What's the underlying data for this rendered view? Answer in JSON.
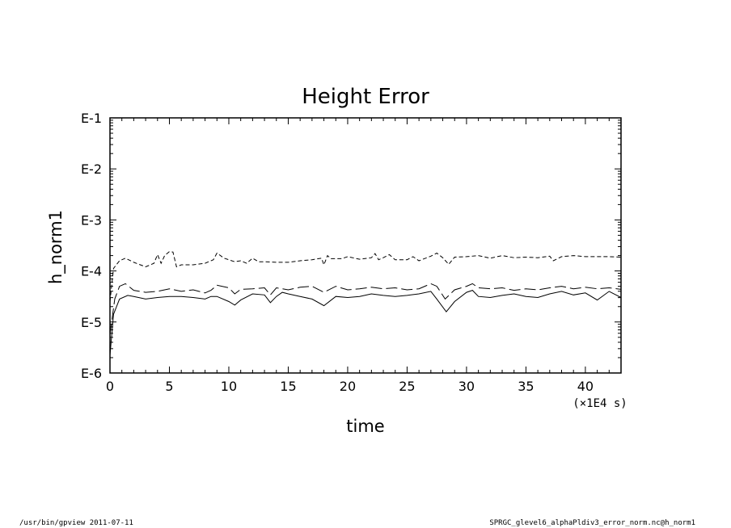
{
  "chart_data": {
    "type": "line",
    "title": "Height Error",
    "xlabel": "time",
    "ylabel": "h_norm1",
    "x_unit_label": "(×1E4 s)",
    "xlim": [
      0,
      43
    ],
    "ylim": [
      -6,
      -1
    ],
    "y_scale": "log10",
    "xticks": [
      0,
      5,
      10,
      15,
      20,
      25,
      30,
      35,
      40
    ],
    "yticks": [
      -1,
      -2,
      -3,
      -4,
      -5,
      -6
    ],
    "ytick_labels": [
      "E-1",
      "E-2",
      "E-3",
      "E-4",
      "E-5",
      "E-6"
    ],
    "grid": false,
    "legend": "none",
    "series": [
      {
        "line_style": "dashed-short",
        "points": [
          [
            0,
            -4.6
          ],
          [
            0.3,
            -3.95
          ],
          [
            0.8,
            -3.8
          ],
          [
            1.3,
            -3.75
          ],
          [
            2,
            -3.83
          ],
          [
            3,
            -3.92
          ],
          [
            3.7,
            -3.85
          ],
          [
            4,
            -3.68
          ],
          [
            4.3,
            -3.85
          ],
          [
            4.6,
            -3.7
          ],
          [
            5,
            -3.62
          ],
          [
            5.3,
            -3.63
          ],
          [
            5.6,
            -3.92
          ],
          [
            6,
            -3.88
          ],
          [
            7,
            -3.88
          ],
          [
            8,
            -3.85
          ],
          [
            8.7,
            -3.78
          ],
          [
            9,
            -3.65
          ],
          [
            9.6,
            -3.75
          ],
          [
            10.5,
            -3.82
          ],
          [
            11,
            -3.8
          ],
          [
            11.5,
            -3.85
          ],
          [
            12,
            -3.75
          ],
          [
            12.5,
            -3.82
          ],
          [
            13,
            -3.82
          ],
          [
            14,
            -3.83
          ],
          [
            15,
            -3.83
          ],
          [
            16,
            -3.8
          ],
          [
            17,
            -3.78
          ],
          [
            17.8,
            -3.75
          ],
          [
            18,
            -3.88
          ],
          [
            18.3,
            -3.7
          ],
          [
            18.6,
            -3.76
          ],
          [
            19.5,
            -3.76
          ],
          [
            20,
            -3.72
          ],
          [
            21,
            -3.77
          ],
          [
            22,
            -3.74
          ],
          [
            22.3,
            -3.66
          ],
          [
            22.6,
            -3.78
          ],
          [
            23,
            -3.74
          ],
          [
            23.5,
            -3.68
          ],
          [
            24,
            -3.78
          ],
          [
            25,
            -3.78
          ],
          [
            25.5,
            -3.72
          ],
          [
            26,
            -3.8
          ],
          [
            27,
            -3.71
          ],
          [
            27.5,
            -3.65
          ],
          [
            28,
            -3.74
          ],
          [
            28.5,
            -3.87
          ],
          [
            29,
            -3.73
          ],
          [
            30,
            -3.72
          ],
          [
            31,
            -3.7
          ],
          [
            32,
            -3.75
          ],
          [
            33,
            -3.7
          ],
          [
            34,
            -3.74
          ],
          [
            35,
            -3.73
          ],
          [
            36,
            -3.74
          ],
          [
            37,
            -3.71
          ],
          [
            37.3,
            -3.8
          ],
          [
            38,
            -3.72
          ],
          [
            39,
            -3.7
          ],
          [
            40,
            -3.72
          ],
          [
            41,
            -3.72
          ],
          [
            42,
            -3.72
          ],
          [
            43,
            -3.73
          ]
        ]
      },
      {
        "line_style": "dashed-long",
        "points": [
          [
            0,
            -5.25
          ],
          [
            0.4,
            -4.55
          ],
          [
            0.8,
            -4.3
          ],
          [
            1.3,
            -4.25
          ],
          [
            2,
            -4.38
          ],
          [
            3,
            -4.42
          ],
          [
            4,
            -4.4
          ],
          [
            5,
            -4.35
          ],
          [
            6,
            -4.4
          ],
          [
            7,
            -4.37
          ],
          [
            8,
            -4.43
          ],
          [
            8.5,
            -4.38
          ],
          [
            9,
            -4.28
          ],
          [
            10,
            -4.33
          ],
          [
            10.5,
            -4.45
          ],
          [
            11,
            -4.36
          ],
          [
            12,
            -4.35
          ],
          [
            13,
            -4.33
          ],
          [
            13.5,
            -4.47
          ],
          [
            14,
            -4.33
          ],
          [
            15,
            -4.37
          ],
          [
            16,
            -4.32
          ],
          [
            17,
            -4.3
          ],
          [
            18,
            -4.42
          ],
          [
            19,
            -4.3
          ],
          [
            20,
            -4.37
          ],
          [
            21,
            -4.35
          ],
          [
            22,
            -4.32
          ],
          [
            23,
            -4.35
          ],
          [
            24,
            -4.33
          ],
          [
            25,
            -4.37
          ],
          [
            26,
            -4.35
          ],
          [
            27,
            -4.25
          ],
          [
            27.5,
            -4.3
          ],
          [
            28.2,
            -4.55
          ],
          [
            29,
            -4.37
          ],
          [
            30,
            -4.3
          ],
          [
            30.5,
            -4.25
          ],
          [
            31,
            -4.33
          ],
          [
            32,
            -4.35
          ],
          [
            33,
            -4.33
          ],
          [
            34,
            -4.38
          ],
          [
            35,
            -4.35
          ],
          [
            36,
            -4.37
          ],
          [
            37,
            -4.33
          ],
          [
            38,
            -4.3
          ],
          [
            39,
            -4.35
          ],
          [
            40,
            -4.32
          ],
          [
            41,
            -4.35
          ],
          [
            42,
            -4.33
          ],
          [
            43,
            -4.36
          ]
        ]
      },
      {
        "line_style": "solid",
        "points": [
          [
            0,
            -5.65
          ],
          [
            0.3,
            -4.85
          ],
          [
            0.8,
            -4.55
          ],
          [
            1.5,
            -4.48
          ],
          [
            2,
            -4.5
          ],
          [
            3,
            -4.55
          ],
          [
            4,
            -4.52
          ],
          [
            5,
            -4.5
          ],
          [
            6,
            -4.5
          ],
          [
            7,
            -4.52
          ],
          [
            8,
            -4.55
          ],
          [
            8.5,
            -4.5
          ],
          [
            9,
            -4.5
          ],
          [
            10,
            -4.6
          ],
          [
            10.5,
            -4.67
          ],
          [
            11,
            -4.57
          ],
          [
            12,
            -4.45
          ],
          [
            13,
            -4.47
          ],
          [
            13.5,
            -4.62
          ],
          [
            14,
            -4.5
          ],
          [
            14.5,
            -4.42
          ],
          [
            15,
            -4.45
          ],
          [
            16,
            -4.5
          ],
          [
            17,
            -4.55
          ],
          [
            18,
            -4.68
          ],
          [
            19,
            -4.5
          ],
          [
            20,
            -4.52
          ],
          [
            21,
            -4.5
          ],
          [
            22,
            -4.45
          ],
          [
            23,
            -4.48
          ],
          [
            24,
            -4.5
          ],
          [
            25,
            -4.48
          ],
          [
            26,
            -4.45
          ],
          [
            27,
            -4.4
          ],
          [
            27.5,
            -4.55
          ],
          [
            28.3,
            -4.8
          ],
          [
            29,
            -4.6
          ],
          [
            30,
            -4.42
          ],
          [
            30.5,
            -4.38
          ],
          [
            31,
            -4.5
          ],
          [
            32,
            -4.52
          ],
          [
            33,
            -4.48
          ],
          [
            34,
            -4.45
          ],
          [
            35,
            -4.5
          ],
          [
            36,
            -4.52
          ],
          [
            37,
            -4.45
          ],
          [
            38,
            -4.4
          ],
          [
            39,
            -4.47
          ],
          [
            40,
            -4.43
          ],
          [
            41,
            -4.57
          ],
          [
            42,
            -4.4
          ],
          [
            43,
            -4.52
          ]
        ]
      }
    ]
  },
  "footer": {
    "left": "/usr/bin/gpview  2011-07-11",
    "right": "SPRGC_glevel6_alphaPldiv3_error_norm.nc@h_norm1"
  }
}
